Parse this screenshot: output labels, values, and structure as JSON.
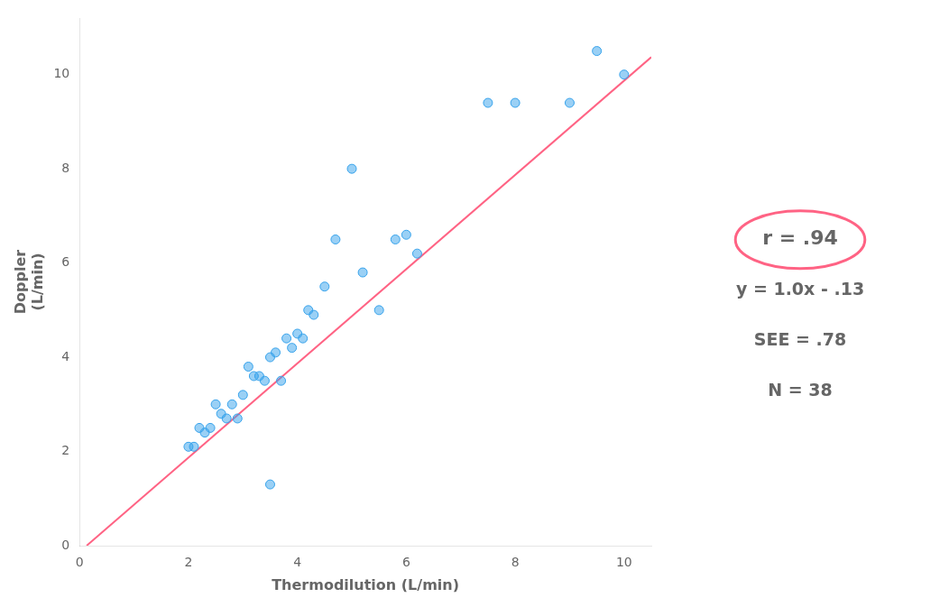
{
  "chart_data": {
    "type": "scatter",
    "xlabel": "Thermodilution (L/min)",
    "ylabel": [
      "Doppler",
      "(L/min)"
    ],
    "annotations": [
      "r = .94",
      "y = 1.0x - .13",
      "SEE = .78",
      "N = 38"
    ],
    "series": [
      {
        "type": "scatter",
        "x": [
          2.0,
          2.1,
          2.2,
          2.3,
          2.4,
          2.5,
          2.6,
          2.7,
          2.8,
          2.9,
          3.0,
          3.1,
          3.2,
          3.3,
          3.4,
          3.5,
          3.6,
          3.7,
          3.8,
          3.9,
          4.0,
          4.1,
          4.2,
          4.3,
          4.5,
          4.7,
          5.0,
          5.2,
          5.5,
          5.8,
          6.0,
          6.2,
          7.5,
          8.0,
          9.0,
          9.5,
          10.0,
          3.5
        ],
        "values": [
          2.1,
          2.1,
          2.5,
          2.4,
          2.5,
          3.0,
          2.8,
          2.7,
          3.0,
          2.7,
          3.2,
          3.8,
          3.6,
          3.6,
          3.5,
          4.0,
          4.1,
          3.5,
          4.4,
          4.2,
          4.5,
          4.4,
          5.0,
          4.9,
          5.5,
          6.5,
          8.0,
          5.8,
          5.0,
          6.5,
          6.6,
          6.2,
          9.4,
          9.4,
          9.4,
          10.5,
          10.0,
          1.3
        ]
      },
      {
        "type": "line",
        "x": [
          0.13,
          10.5
        ],
        "values": [
          0.0,
          10.37
        ]
      }
    ],
    "xlim": [
      0,
      10.5
    ],
    "ylim": [
      0,
      11.2
    ],
    "xticks": [
      0,
      2,
      4,
      6,
      8,
      10
    ],
    "yticks": [
      0,
      2,
      4,
      6,
      8,
      10
    ],
    "grid": false
  }
}
